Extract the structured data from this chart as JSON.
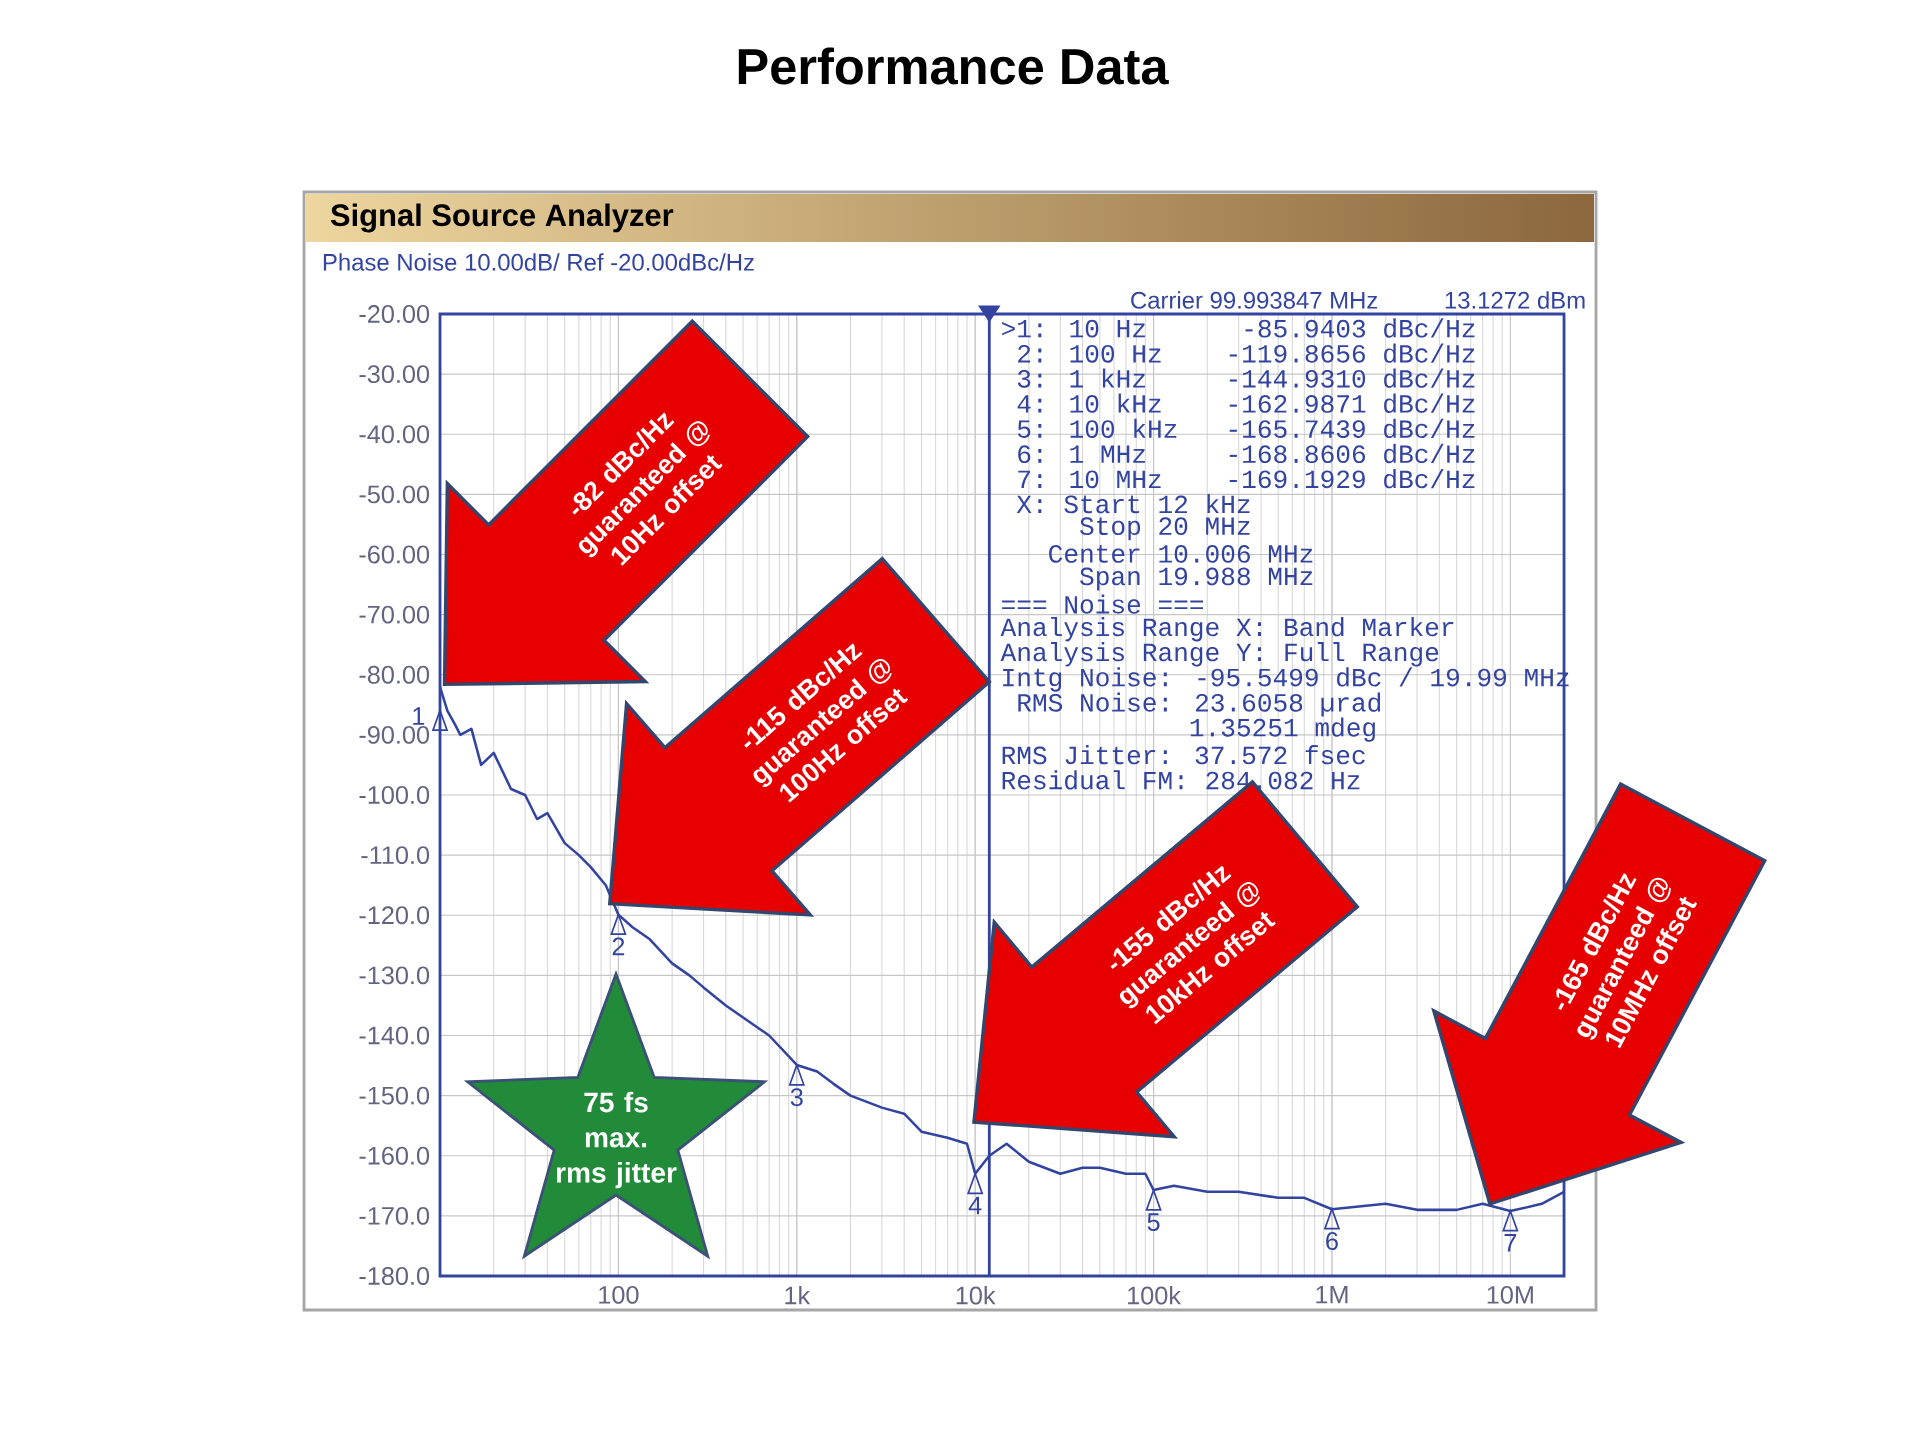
{
  "chart_data": {
    "type": "line",
    "title": "Performance Data",
    "subtitle": "Signal Source Analyzer",
    "xlim": [
      10,
      20000000
    ],
    "log": "x",
    "grid": true,
    "xticks": [
      {
        "value": 10,
        "label": null
      },
      {
        "value": 100,
        "label": "100"
      },
      {
        "value": 1000,
        "label": "1k"
      },
      {
        "value": 10000,
        "label": "10k"
      },
      {
        "value": 100000,
        "label": "100k"
      },
      {
        "value": 1000000,
        "label": "1M"
      },
      {
        "value": 10000000,
        "label": "10M"
      }
    ],
    "ylim": [
      -180,
      -20
    ],
    "yticks": [
      {
        "value": -20,
        "label": "-20.00"
      },
      {
        "value": -30,
        "label": "-30.00"
      },
      {
        "value": -40,
        "label": "-40.00"
      },
      {
        "value": -50,
        "label": "-50.00"
      },
      {
        "value": -60,
        "label": "-60.00"
      },
      {
        "value": -70,
        "label": "-70.00"
      },
      {
        "value": -80,
        "label": "-80.00"
      },
      {
        "value": -90,
        "label": "-90.00"
      },
      {
        "value": -100,
        "label": "-100.0"
      },
      {
        "value": -110,
        "label": "-110.0"
      },
      {
        "value": -120,
        "label": "-120.0"
      },
      {
        "value": -130,
        "label": "-130.0"
      },
      {
        "value": -140,
        "label": "-140.0"
      },
      {
        "value": -150,
        "label": "-150.0"
      },
      {
        "value": -160,
        "label": "-160.0"
      },
      {
        "value": -170,
        "label": "-170.0"
      },
      {
        "value": -180,
        "label": "-180.0"
      }
    ],
    "series": [
      {
        "color": "#3344a0",
        "x": [
          10,
          11,
          12,
          13,
          15,
          17,
          20,
          25,
          30,
          35,
          40,
          50,
          60,
          70,
          85,
          100,
          120,
          150,
          200,
          250,
          300,
          400,
          500,
          700,
          1000,
          1300,
          1600,
          2000,
          3000,
          4000,
          5000,
          7000,
          9000,
          10000,
          12000,
          15000,
          20000,
          30000,
          40000,
          50000,
          70000,
          90000,
          100000,
          130000,
          200000,
          300000,
          500000,
          700000,
          1000000,
          2000000,
          3000000,
          5000000,
          7000000,
          10000000,
          15000000,
          20000000
        ],
        "values": [
          -82,
          -86,
          -88,
          -90,
          -89,
          -95,
          -93,
          -99,
          -100,
          -104,
          -103,
          -108,
          -110,
          -112,
          -115,
          -119.9,
          -122,
          -124,
          -128,
          -130,
          -132,
          -135,
          -137,
          -140,
          -144.9,
          -146,
          -148,
          -150,
          -152,
          -153,
          -156,
          -157,
          -158,
          -163,
          -160,
          -158,
          -161,
          -163,
          -162,
          -162,
          -163,
          -163,
          -165.7,
          -165,
          -166,
          -166,
          -167,
          -167,
          -168.9,
          -168,
          -169,
          -169,
          -168,
          -169.2,
          -168,
          -166
        ]
      }
    ],
    "ref_lines": [
      {
        "axis": "x",
        "value": 12000,
        "color": "#3344a0"
      }
    ],
    "annotations": [
      "Phase Noise 10.00dB/ Ref -20.00dBc/Hz",
      "Carrier 99.993847 MHz",
      "13.1272 dBm",
      ">1: 10 Hz      -85.9403 dBc/Hz",
      " 2: 100 Hz    -119.8656 dBc/Hz",
      " 3: 1 kHz     -144.9310 dBc/Hz",
      " 4: 10 kHz    -162.9871 dBc/Hz",
      " 5: 100 kHz   -165.7439 dBc/Hz",
      " 6: 1 MHz     -168.8606 dBc/Hz",
      " 7: 10 MHz    -169.1929 dBc/Hz",
      " X: Start 12 kHz",
      "     Stop 20 MHz",
      "   Center 10.006 MHz",
      "     Span 19.988 MHz",
      "=== Noise ===",
      "Analysis Range X: Band Marker",
      "Analysis Range Y: Full Range",
      "Intg Noise: -95.5499 dBc / 19.99 MHz",
      " RMS Noise: 23.6058 µrad",
      "            1.35251 mdeg",
      "RMS Jitter: 37.572 fsec",
      "Residual FM: 284.082 Hz",
      "75 fs max. rms jitter",
      "-82 dBc/Hz guaranteed @ 10Hz offset",
      "-115 dBc/Hz guaranteed @ 100Hz offset",
      "-155 dBc/Hz guaranteed @ 10kHz offset",
      "-165 dBc/Hz guaranteed @ 10MHz offset",
      {
        "text": "1",
        "x": 10,
        "y": -85.9403
      },
      {
        "text": "2",
        "x": 100,
        "y": -119.8656
      },
      {
        "text": "3",
        "x": 1000,
        "y": -144.931
      },
      {
        "text": "4",
        "x": 10000,
        "y": -162.9871
      },
      {
        "text": "5",
        "x": 100000,
        "y": -165.7439
      },
      {
        "text": "6",
        "x": 1000000,
        "y": -168.8606
      },
      {
        "text": "7",
        "x": 10000000,
        "y": -169.1929
      }
    ]
  }
}
